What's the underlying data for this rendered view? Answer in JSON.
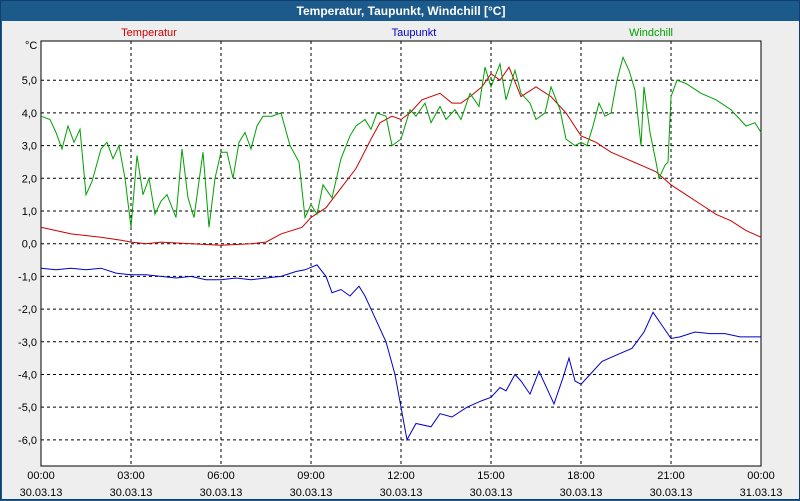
{
  "window": {
    "title": "Temperatur, Taupunkt, Windchill [°C]"
  },
  "colors": {
    "titlebar": "#1c5a8c",
    "panel": "#eeeeee",
    "plot_bg": "#ffffff",
    "grid": "#000000",
    "temperatur": "#cc0000",
    "taupunkt": "#0000cc",
    "windchill": "#00a000"
  },
  "chart_data": {
    "type": "line",
    "title": "Temperatur, Taupunkt, Windchill [°C]",
    "unit_label": "°C",
    "xlabel": "",
    "ylabel": "",
    "ylim": [
      -6.8,
      6.2
    ],
    "xlim_hours": [
      0,
      24
    ],
    "grid": true,
    "legend_position": "top",
    "y_ticks": [
      {
        "v": 5,
        "label": "5,0"
      },
      {
        "v": 4,
        "label": "4,0"
      },
      {
        "v": 3,
        "label": "3,0"
      },
      {
        "v": 2,
        "label": "2,0"
      },
      {
        "v": 1,
        "label": "1,0"
      },
      {
        "v": 0,
        "label": "0,0"
      },
      {
        "v": -1,
        "label": "-1,0"
      },
      {
        "v": -2,
        "label": "-2,0"
      },
      {
        "v": -3,
        "label": "-3,0"
      },
      {
        "v": -4,
        "label": "-4,0"
      },
      {
        "v": -5,
        "label": "-5,0"
      },
      {
        "v": -6,
        "label": "-6,0"
      }
    ],
    "x_ticks": [
      {
        "h": 0,
        "time": "00:00",
        "date": "30.03.13"
      },
      {
        "h": 3,
        "time": "03:00",
        "date": "30.03.13"
      },
      {
        "h": 6,
        "time": "06:00",
        "date": "30.03.13"
      },
      {
        "h": 9,
        "time": "09:00",
        "date": "30.03.13"
      },
      {
        "h": 12,
        "time": "12:00",
        "date": "30.03.13"
      },
      {
        "h": 15,
        "time": "15:00",
        "date": "30.03.13"
      },
      {
        "h": 18,
        "time": "18:00",
        "date": "30.03.13"
      },
      {
        "h": 21,
        "time": "21:00",
        "date": "30.03.13"
      },
      {
        "h": 24,
        "time": "00:00",
        "date": "31.03.13"
      }
    ],
    "series": [
      {
        "name": "Temperatur",
        "color": "#cc0000",
        "points": [
          [
            0,
            0.5
          ],
          [
            1,
            0.3
          ],
          [
            2,
            0.2
          ],
          [
            2.7,
            0.1
          ],
          [
            3,
            0.05
          ],
          [
            3.5,
            0.0
          ],
          [
            4,
            0.05
          ],
          [
            5,
            0.0
          ],
          [
            6,
            -0.05
          ],
          [
            7,
            0.0
          ],
          [
            7.5,
            0.05
          ],
          [
            8,
            0.3
          ],
          [
            8.7,
            0.5
          ],
          [
            9,
            0.8
          ],
          [
            9.5,
            1.1
          ],
          [
            10,
            1.7
          ],
          [
            10.5,
            2.3
          ],
          [
            11,
            3.2
          ],
          [
            11.3,
            3.7
          ],
          [
            11.7,
            3.9
          ],
          [
            12,
            3.8
          ],
          [
            12.3,
            4.0
          ],
          [
            12.7,
            4.4
          ],
          [
            13.3,
            4.6
          ],
          [
            13.7,
            4.3
          ],
          [
            14,
            4.3
          ],
          [
            14.3,
            4.5
          ],
          [
            14.7,
            4.8
          ],
          [
            15,
            5.2
          ],
          [
            15.3,
            5.0
          ],
          [
            15.6,
            5.4
          ],
          [
            16,
            4.5
          ],
          [
            16.5,
            4.8
          ],
          [
            17,
            4.5
          ],
          [
            17.5,
            4.0
          ],
          [
            18,
            3.3
          ],
          [
            18.5,
            3.1
          ],
          [
            19,
            2.8
          ],
          [
            19.5,
            2.6
          ],
          [
            20,
            2.4
          ],
          [
            20.5,
            2.2
          ],
          [
            21,
            1.8
          ],
          [
            21.5,
            1.5
          ],
          [
            22,
            1.2
          ],
          [
            22.5,
            0.9
          ],
          [
            23,
            0.7
          ],
          [
            23.5,
            0.4
          ],
          [
            24,
            0.2
          ]
        ]
      },
      {
        "name": "Taupunkt",
        "color": "#0000cc",
        "points": [
          [
            0,
            -0.75
          ],
          [
            0.5,
            -0.8
          ],
          [
            1,
            -0.75
          ],
          [
            1.5,
            -0.8
          ],
          [
            2,
            -0.75
          ],
          [
            2.5,
            -0.9
          ],
          [
            3,
            -0.95
          ],
          [
            3.5,
            -0.95
          ],
          [
            4,
            -1.0
          ],
          [
            4.5,
            -1.05
          ],
          [
            5,
            -1.0
          ],
          [
            5.5,
            -1.1
          ],
          [
            6,
            -1.1
          ],
          [
            6.5,
            -1.05
          ],
          [
            7,
            -1.1
          ],
          [
            7.5,
            -1.05
          ],
          [
            8,
            -1.0
          ],
          [
            8.5,
            -0.85
          ],
          [
            8.8,
            -0.8
          ],
          [
            9.2,
            -0.65
          ],
          [
            9.5,
            -1.0
          ],
          [
            9.7,
            -1.5
          ],
          [
            10,
            -1.4
          ],
          [
            10.3,
            -1.6
          ],
          [
            10.6,
            -1.3
          ],
          [
            10.8,
            -1.6
          ],
          [
            11,
            -2.0
          ],
          [
            11.5,
            -3.0
          ],
          [
            11.8,
            -4.0
          ],
          [
            12,
            -5.0
          ],
          [
            12.2,
            -6.0
          ],
          [
            12.5,
            -5.5
          ],
          [
            13,
            -5.6
          ],
          [
            13.3,
            -5.2
          ],
          [
            13.7,
            -5.3
          ],
          [
            14.2,
            -5.0
          ],
          [
            14.7,
            -4.8
          ],
          [
            15,
            -4.7
          ],
          [
            15.3,
            -4.4
          ],
          [
            15.5,
            -4.5
          ],
          [
            15.8,
            -4.0
          ],
          [
            16,
            -4.2
          ],
          [
            16.3,
            -4.6
          ],
          [
            16.6,
            -3.9
          ],
          [
            16.9,
            -4.5
          ],
          [
            17.1,
            -4.9
          ],
          [
            17.4,
            -4.1
          ],
          [
            17.6,
            -3.5
          ],
          [
            17.8,
            -4.2
          ],
          [
            18,
            -4.3
          ],
          [
            18.3,
            -4.0
          ],
          [
            18.7,
            -3.6
          ],
          [
            19.2,
            -3.4
          ],
          [
            19.7,
            -3.2
          ],
          [
            20.1,
            -2.7
          ],
          [
            20.4,
            -2.1
          ],
          [
            20.7,
            -2.5
          ],
          [
            21,
            -2.9
          ],
          [
            21.3,
            -2.85
          ],
          [
            21.8,
            -2.7
          ],
          [
            22.3,
            -2.75
          ],
          [
            22.8,
            -2.75
          ],
          [
            23.3,
            -2.85
          ],
          [
            24,
            -2.85
          ]
        ]
      },
      {
        "name": "Windchill",
        "color": "#00a000",
        "points": [
          [
            0,
            3.9
          ],
          [
            0.3,
            3.8
          ],
          [
            0.5,
            3.4
          ],
          [
            0.7,
            2.9
          ],
          [
            0.9,
            3.6
          ],
          [
            1.1,
            3.1
          ],
          [
            1.3,
            3.5
          ],
          [
            1.5,
            1.5
          ],
          [
            1.7,
            1.9
          ],
          [
            2,
            2.9
          ],
          [
            2.2,
            3.1
          ],
          [
            2.4,
            2.6
          ],
          [
            2.6,
            3.0
          ],
          [
            2.8,
            2.0
          ],
          [
            3,
            0.5
          ],
          [
            3.2,
            2.7
          ],
          [
            3.4,
            1.5
          ],
          [
            3.6,
            2.0
          ],
          [
            3.8,
            0.9
          ],
          [
            4.0,
            1.3
          ],
          [
            4.2,
            1.5
          ],
          [
            4.5,
            0.8
          ],
          [
            4.7,
            2.9
          ],
          [
            4.9,
            1.4
          ],
          [
            5.1,
            0.8
          ],
          [
            5.4,
            2.8
          ],
          [
            5.6,
            0.5
          ],
          [
            5.8,
            2.0
          ],
          [
            6,
            2.8
          ],
          [
            6.2,
            2.8
          ],
          [
            6.4,
            2.0
          ],
          [
            6.6,
            3.1
          ],
          [
            6.8,
            3.4
          ],
          [
            7,
            2.9
          ],
          [
            7.2,
            3.6
          ],
          [
            7.4,
            3.9
          ],
          [
            7.7,
            3.9
          ],
          [
            8,
            4.0
          ],
          [
            8.3,
            3.0
          ],
          [
            8.6,
            2.5
          ],
          [
            8.8,
            0.8
          ],
          [
            9.0,
            1.2
          ],
          [
            9.2,
            0.9
          ],
          [
            9.4,
            1.8
          ],
          [
            9.7,
            1.4
          ],
          [
            10,
            2.6
          ],
          [
            10.3,
            3.3
          ],
          [
            10.5,
            3.6
          ],
          [
            10.8,
            3.8
          ],
          [
            11,
            3.5
          ],
          [
            11.2,
            4.0
          ],
          [
            11.5,
            3.9
          ],
          [
            11.7,
            3.0
          ],
          [
            12,
            3.2
          ],
          [
            12.3,
            4.1
          ],
          [
            12.5,
            3.9
          ],
          [
            12.8,
            4.3
          ],
          [
            13.0,
            3.7
          ],
          [
            13.3,
            4.2
          ],
          [
            13.5,
            3.8
          ],
          [
            13.8,
            4.1
          ],
          [
            14,
            3.8
          ],
          [
            14.3,
            4.6
          ],
          [
            14.6,
            4.2
          ],
          [
            14.8,
            5.4
          ],
          [
            15.0,
            4.8
          ],
          [
            15.3,
            5.5
          ],
          [
            15.5,
            4.4
          ],
          [
            15.8,
            5.3
          ],
          [
            16,
            4.6
          ],
          [
            16.3,
            4.3
          ],
          [
            16.5,
            3.8
          ],
          [
            16.8,
            4.0
          ],
          [
            17,
            4.8
          ],
          [
            17.3,
            4.1
          ],
          [
            17.5,
            3.2
          ],
          [
            17.8,
            3.0
          ],
          [
            18,
            3.1
          ],
          [
            18.2,
            3.0
          ],
          [
            18.4,
            3.6
          ],
          [
            18.6,
            4.3
          ],
          [
            18.8,
            3.9
          ],
          [
            19,
            4.0
          ],
          [
            19.2,
            5.0
          ],
          [
            19.4,
            5.7
          ],
          [
            19.6,
            5.3
          ],
          [
            19.8,
            4.7
          ],
          [
            20,
            3.0
          ],
          [
            20.1,
            4.8
          ],
          [
            20.3,
            3.4
          ],
          [
            20.5,
            2.5
          ],
          [
            20.6,
            2.0
          ],
          [
            20.8,
            2.4
          ],
          [
            20.9,
            2.5
          ],
          [
            21.0,
            4.5
          ],
          [
            21.2,
            5.0
          ],
          [
            21.5,
            4.9
          ],
          [
            22,
            4.6
          ],
          [
            22.5,
            4.4
          ],
          [
            23,
            4.1
          ],
          [
            23.3,
            3.8
          ],
          [
            23.5,
            3.6
          ],
          [
            23.8,
            3.7
          ],
          [
            24,
            3.4
          ]
        ]
      }
    ]
  }
}
